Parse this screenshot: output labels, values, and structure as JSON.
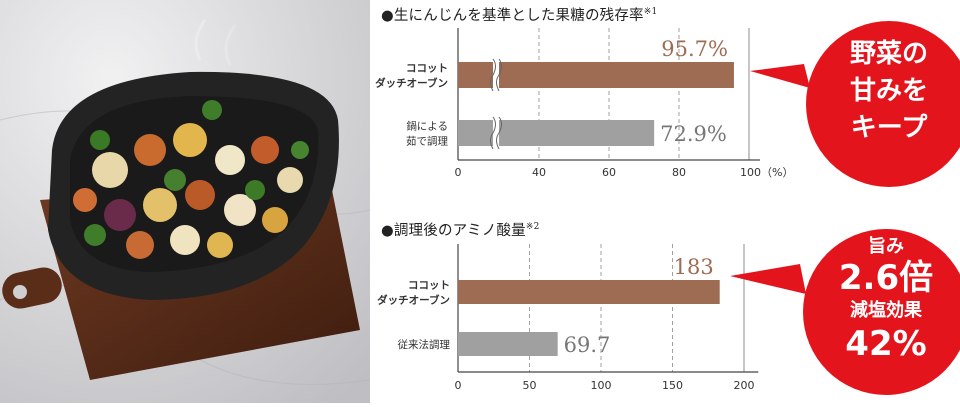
{
  "chart_data": [
    {
      "type": "bar",
      "orientation": "horizontal",
      "title": "●生にんじんを基準とした果糖の残存率",
      "title_note": "※1",
      "categories": [
        "ココット\nダッチオーブン",
        "鍋による\n茹で調理"
      ],
      "values": [
        95.7,
        72.9
      ],
      "value_labels": [
        "95.7%",
        "72.9%"
      ],
      "bar_colors": [
        "#9e6b53",
        "#a0a0a0"
      ],
      "value_colors": [
        "#9e6b53",
        "#777777"
      ],
      "xlim": [
        0,
        110
      ],
      "ticks": [
        0,
        40,
        60,
        80,
        100
      ],
      "tick_labels": [
        "0",
        "40",
        "60",
        "80",
        "100（%）"
      ],
      "axis_break": true,
      "grid": true
    },
    {
      "type": "bar",
      "orientation": "horizontal",
      "title": "●調理後のアミノ酸量",
      "title_note": "※2",
      "categories": [
        "ココット\nダッチオーブン",
        "従来法調理"
      ],
      "values": [
        183,
        69.7
      ],
      "value_labels": [
        "183",
        "69.7"
      ],
      "bar_colors": [
        "#9e6b53",
        "#a0a0a0"
      ],
      "value_colors": [
        "#9e6b53",
        "#777777"
      ],
      "xlim": [
        0,
        210
      ],
      "ticks": [
        0,
        50,
        100,
        150,
        200
      ],
      "tick_labels": [
        "0",
        "50",
        "100",
        "150",
        "200"
      ],
      "axis_break": false,
      "grid": true
    }
  ],
  "callouts": {
    "top": [
      "野菜の",
      "甘みを",
      "キープ"
    ],
    "bottom": {
      "line1": "旨み",
      "line2": "2.6倍",
      "line3": "減塩効果",
      "line4": "42%"
    },
    "color": "#e4141d"
  }
}
